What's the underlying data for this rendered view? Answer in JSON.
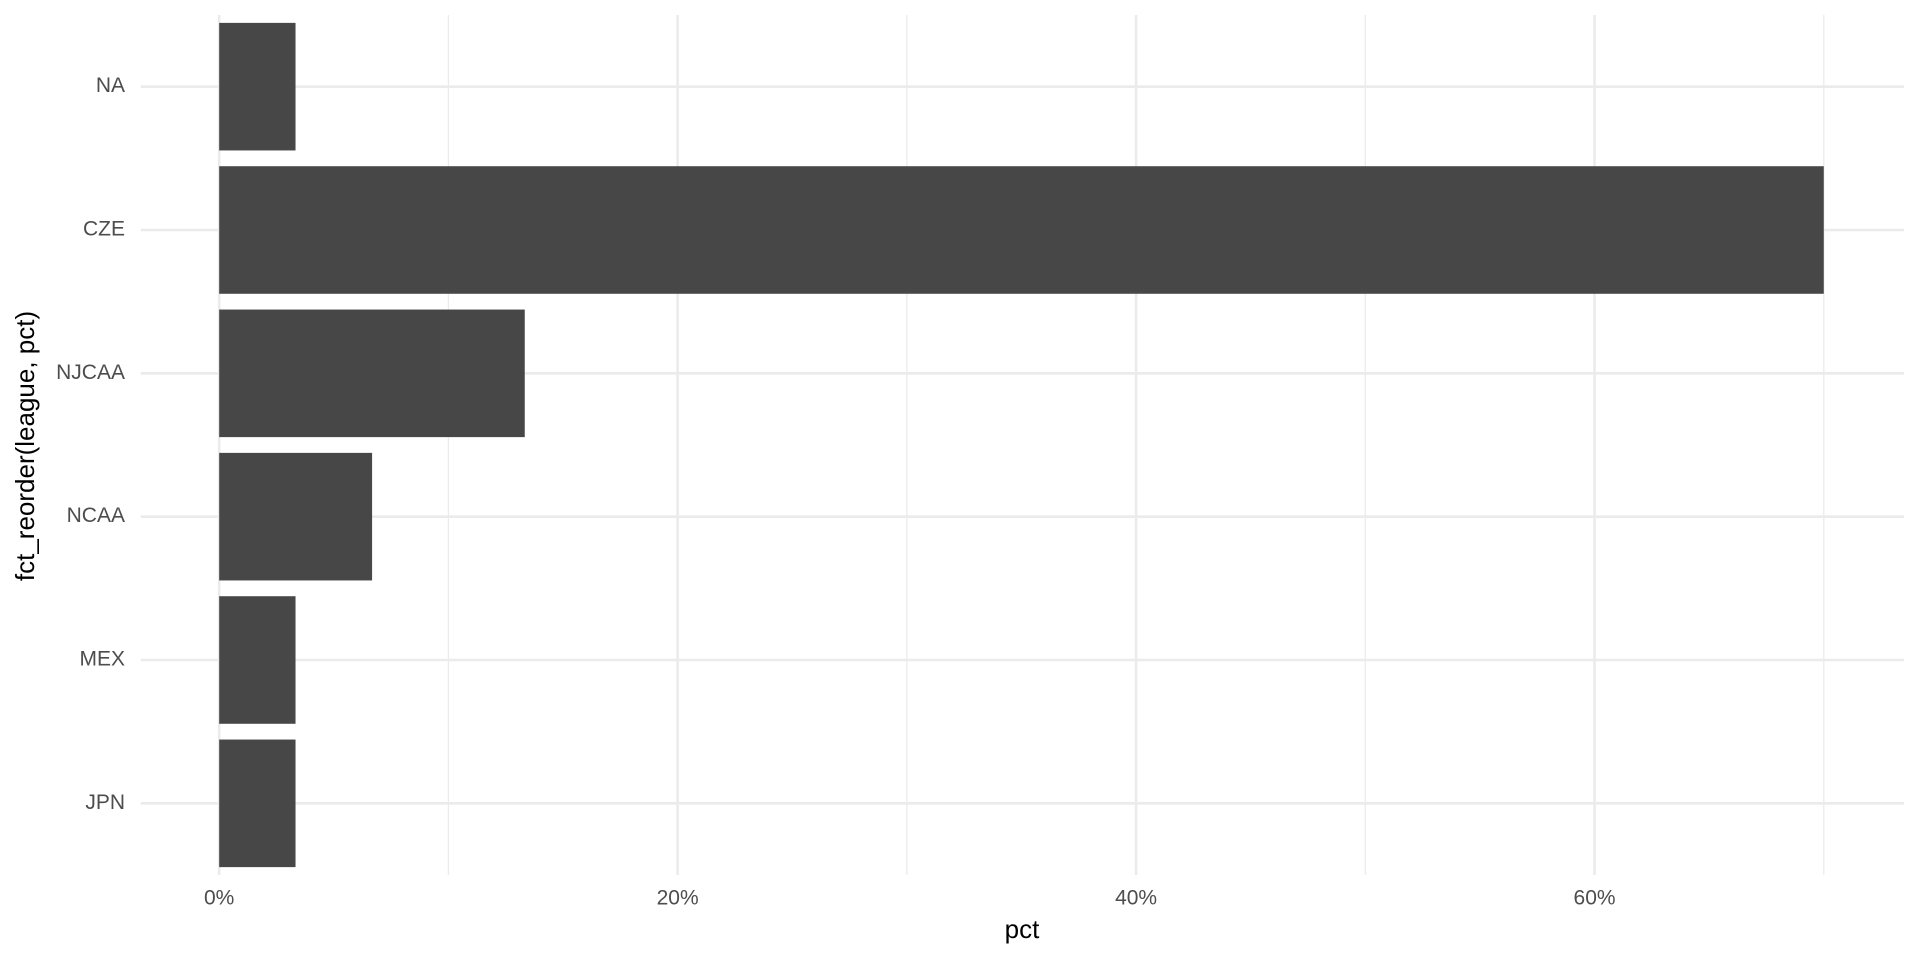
{
  "chart_data": {
    "type": "bar",
    "orientation": "horizontal",
    "x_label": "pct",
    "y_label": "fct_reorder(league, pct)",
    "categories": [
      "NA",
      "CZE",
      "NJCAA",
      "NCAA",
      "MEX",
      "JPN"
    ],
    "values": [
      3.33,
      70,
      13.33,
      6.67,
      3.33,
      3.33
    ],
    "color": "#474747",
    "xlim": [
      -3.42,
      73.5
    ],
    "xticks": [
      {
        "value": 0,
        "label": "0%"
      },
      {
        "value": 20,
        "label": "20%"
      },
      {
        "value": 40,
        "label": "40%"
      },
      {
        "value": 60,
        "label": "60%"
      }
    ],
    "x_minor_grid": [
      10,
      30,
      50,
      70
    ],
    "grid": true
  }
}
